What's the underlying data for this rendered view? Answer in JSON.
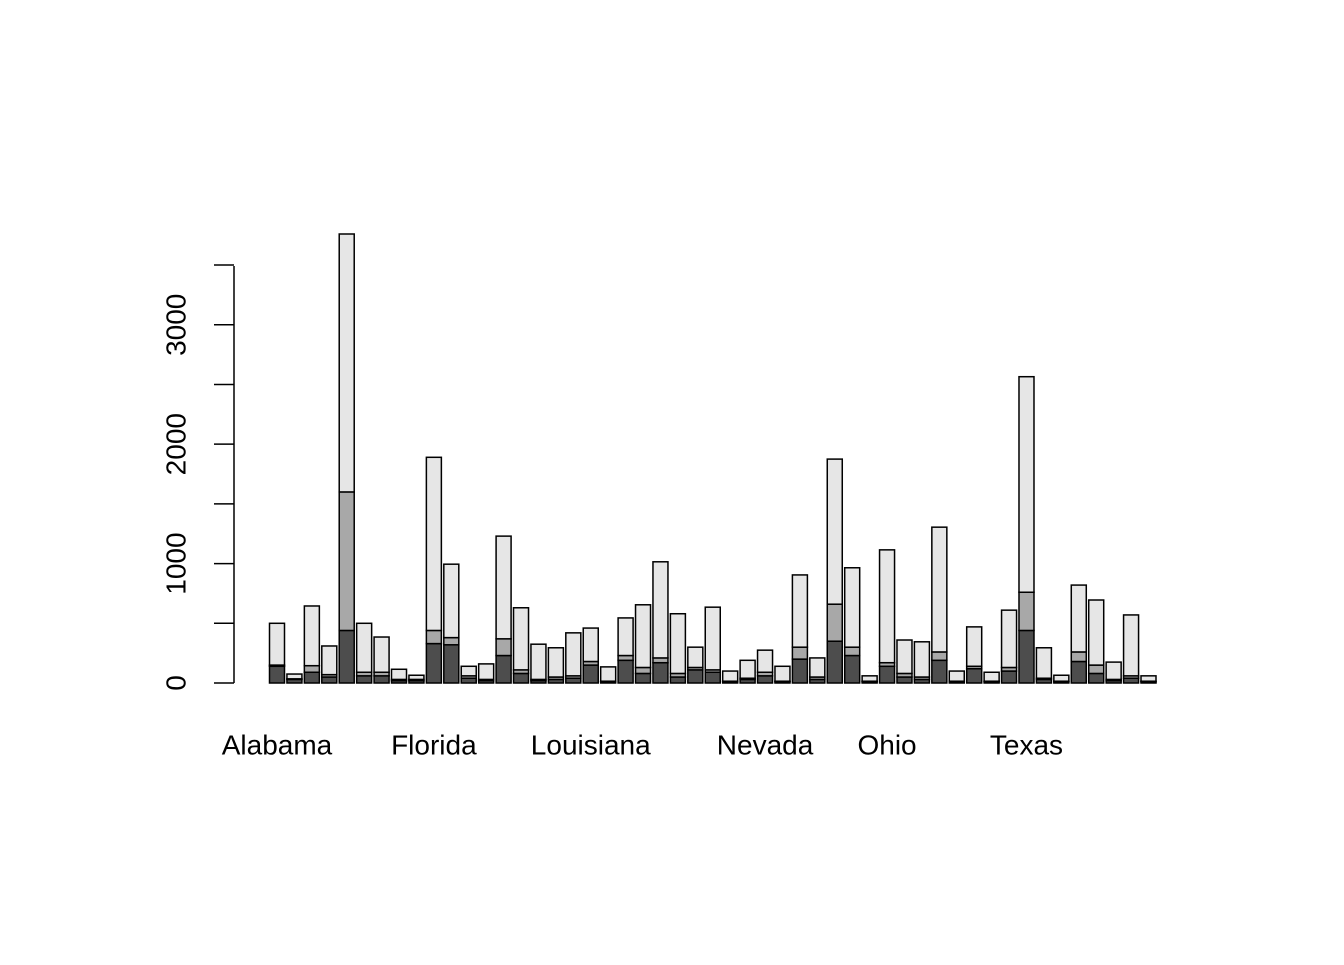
{
  "chart_data": {
    "type": "stacked_bar",
    "categories": [
      "Alabama",
      null,
      null,
      null,
      null,
      null,
      null,
      null,
      null,
      "Florida",
      null,
      null,
      null,
      null,
      null,
      null,
      null,
      null,
      "Louisiana",
      null,
      null,
      null,
      null,
      null,
      null,
      null,
      null,
      null,
      "Nevada",
      null,
      null,
      null,
      null,
      null,
      null,
      "Ohio",
      null,
      null,
      null,
      null,
      null,
      null,
      null,
      "Texas",
      null,
      null,
      null,
      null,
      null,
      null,
      null
    ],
    "series": [
      {
        "color": "#4d4d4d",
        "values": [
          140,
          30,
          90,
          50,
          440,
          60,
          60,
          20,
          20,
          330,
          320,
          40,
          20,
          230,
          80,
          20,
          30,
          40,
          150,
          10,
          190,
          80,
          170,
          50,
          110,
          90,
          10,
          30,
          60,
          10,
          200,
          30,
          350,
          230,
          10,
          140,
          50,
          30,
          190,
          10,
          120,
          10,
          100,
          440,
          30,
          10,
          180,
          80,
          20,
          40,
          10
        ]
      },
      {
        "color": "#a8a8a8",
        "values": [
          10,
          5,
          55,
          20,
          1160,
          30,
          30,
          10,
          10,
          110,
          60,
          20,
          10,
          140,
          30,
          10,
          20,
          20,
          30,
          5,
          40,
          50,
          40,
          30,
          20,
          20,
          5,
          10,
          30,
          5,
          100,
          20,
          310,
          70,
          5,
          30,
          30,
          20,
          70,
          5,
          20,
          5,
          30,
          320,
          10,
          5,
          80,
          70,
          10,
          20,
          5
        ]
      },
      {
        "color": "#e6e6e6",
        "values": [
          350,
          40,
          500,
          240,
          2160,
          410,
          295,
          85,
          35,
          1450,
          615,
          80,
          130,
          860,
          520,
          295,
          245,
          360,
          280,
          120,
          315,
          525,
          805,
          500,
          170,
          525,
          85,
          150,
          185,
          125,
          605,
          160,
          1215,
          665,
          45,
          945,
          280,
          295,
          1045,
          85,
          330,
          75,
          480,
          1805,
          255,
          50,
          560,
          545,
          145,
          510,
          45
        ]
      }
    ],
    "ylim": [
      0,
      3760
    ],
    "yticks": [
      0,
      1000,
      2000,
      3000
    ],
    "yminor": [
      500,
      1500,
      2500,
      3500
    ]
  }
}
